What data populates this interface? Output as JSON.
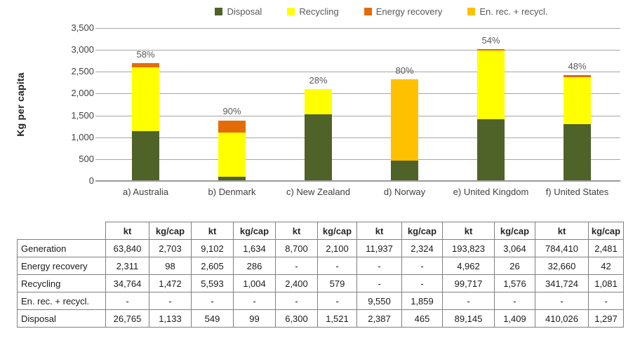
{
  "chart_data": {
    "type": "bar",
    "stacked": true,
    "title": "",
    "xlabel": "",
    "ylabel": "Kg per capita",
    "ylim": [
      0,
      3500
    ],
    "ytick_values": [
      0,
      500,
      1000,
      1500,
      2000,
      2500,
      3000,
      3500
    ],
    "ytick_labels": [
      "0",
      "500",
      "1,000",
      "1,500",
      "2,000",
      "2,500",
      "3,000",
      "3,500"
    ],
    "grid": true,
    "legend_position": "top",
    "units": "kg per capita",
    "categories": [
      "a) Australia",
      "b) Denmark",
      "c) New Zealand",
      "d) Norway",
      "e) United Kingdom",
      "f) United States"
    ],
    "bar_percent_labels": [
      "58%",
      "90%",
      "28%",
      "80%",
      "54%",
      "48%"
    ],
    "series": [
      {
        "name": "Disposal",
        "color": "#4F6228",
        "values": [
          1133,
          99,
          1521,
          465,
          1409,
          1297
        ]
      },
      {
        "name": "Recycling",
        "color": "#FFFF00",
        "values": [
          1472,
          1004,
          579,
          0,
          1576,
          1081
        ]
      },
      {
        "name": "Energy recovery",
        "color": "#E36C09",
        "values": [
          98,
          286,
          0,
          0,
          26,
          42
        ]
      },
      {
        "name": "En. rec. + recycl.",
        "color": "#FFC000",
        "values": [
          0,
          0,
          0,
          1859,
          0,
          0
        ]
      }
    ]
  },
  "table": {
    "col_headers": [
      "kt",
      "kg/cap",
      "kt",
      "kg/cap",
      "kt",
      "kg/cap",
      "kt",
      "kg/cap",
      "kt",
      "kg/cap",
      "kt",
      "kg/cap"
    ],
    "rows": [
      {
        "label": "Generation",
        "values": [
          "63,840",
          "2,703",
          "9,102",
          "1,634",
          "8,700",
          "2,100",
          "11,937",
          "2,324",
          "193,823",
          "3,064",
          "784,410",
          "2,481"
        ]
      },
      {
        "label": "Energy recovery",
        "values": [
          "2,311",
          "98",
          "2,605",
          "286",
          "-",
          "-",
          "-",
          "-",
          "4,962",
          "26",
          "32,660",
          "42"
        ]
      },
      {
        "label": "Recycling",
        "values": [
          "34,764",
          "1,472",
          "5,593",
          "1,004",
          "2,400",
          "579",
          "-",
          "-",
          "99,717",
          "1,576",
          "341,724",
          "1,081"
        ]
      },
      {
        "label": "En. rec. + recycl.",
        "values": [
          "-",
          "-",
          "-",
          "-",
          "-",
          "-",
          "9,550",
          "1,859",
          "-",
          "-",
          "-",
          "-"
        ]
      },
      {
        "label": "Disposal",
        "values": [
          "26,765",
          "1,133",
          "549",
          "99",
          "6,300",
          "1,521",
          "2,387",
          "465",
          "89,145",
          "1,409",
          "410,026",
          "1,297"
        ]
      }
    ]
  },
  "colors": {
    "disposal": "#4F6228",
    "recycling": "#FFFF00",
    "energy_recovery": "#E36C09",
    "en_rec_recycl": "#FFC000",
    "gridline": "#A6A6A6",
    "table_border": "#808080",
    "chart_text": "#595959"
  }
}
